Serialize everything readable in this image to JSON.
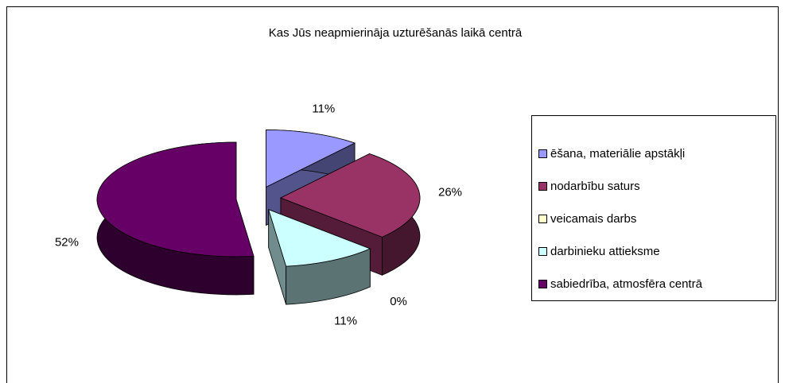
{
  "chart_data": {
    "type": "pie3d",
    "title": "Kas Jūs neapmierināja uzturēšanās laikā centrā",
    "categories": [
      "ēšana, materiālie apstākļi",
      "nodarbību saturs",
      "veicamais darbs",
      "darbinieku attieksme",
      "sabiedrība, atmosfēra centrā"
    ],
    "values": [
      11,
      26,
      0,
      11,
      52
    ],
    "value_labels": [
      "11%",
      "26%",
      "0%",
      "11%",
      "52%"
    ],
    "colors": [
      "#9999ff",
      "#993366",
      "#ffffcc",
      "#ccffff",
      "#660066"
    ],
    "legend": "right"
  }
}
